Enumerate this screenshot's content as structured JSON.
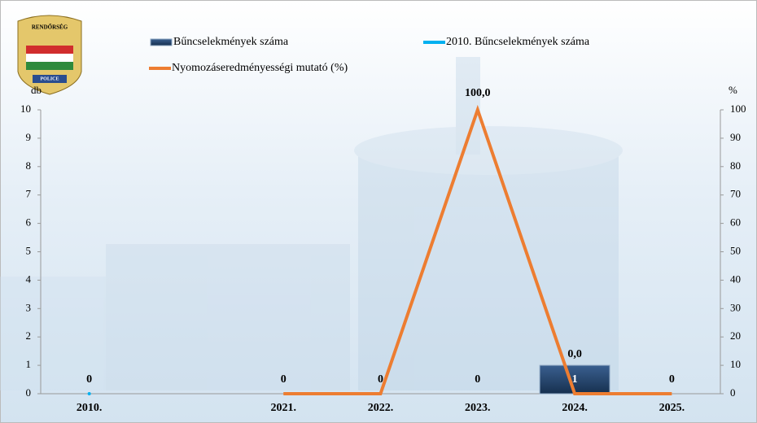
{
  "chart_data": {
    "type": "bar_line",
    "logo_text": [
      "RENDŐRSÉG",
      "POLICE"
    ],
    "y_label": "db",
    "y2_label": "%",
    "categories": [
      "2010.",
      null,
      "2021.",
      "2022.",
      "2023.",
      "2024.",
      "2025."
    ],
    "series": [
      {
        "name": "Bűncselekmények száma",
        "type": "bar",
        "color": "#1f3b63",
        "values": [
          null,
          null,
          0,
          0,
          0,
          1,
          0
        ]
      },
      {
        "name": "2010. Bűncselekmények száma",
        "type": "line",
        "color": "#00b0f0",
        "values": [
          0,
          null,
          null,
          null,
          null,
          null,
          null
        ]
      },
      {
        "name": "Nyomozáseredményességi mutató (%)",
        "type": "line",
        "axis": "y2",
        "color": "#ed7d31",
        "values": [
          null,
          null,
          0,
          0,
          100,
          0,
          0
        ],
        "value_labels": [
          null,
          null,
          null,
          null,
          "100,0",
          "0,0",
          null
        ]
      }
    ],
    "ylim": [
      0,
      10
    ],
    "yticks": [
      0,
      1,
      2,
      3,
      4,
      5,
      6,
      7,
      8,
      9,
      10
    ],
    "y2lim": [
      0,
      100
    ],
    "y2ticks": [
      0,
      10,
      20,
      30,
      40,
      50,
      60,
      70,
      80,
      90,
      100
    ]
  }
}
